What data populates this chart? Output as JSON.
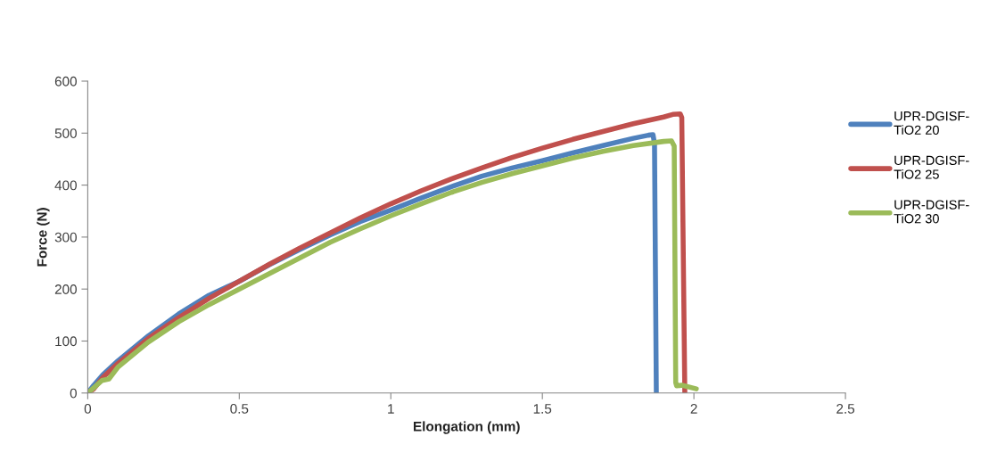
{
  "chart_data": {
    "type": "line",
    "xlabel": "Elongation (mm)",
    "ylabel": "Force (N)",
    "xlim": [
      0,
      2.5
    ],
    "ylim": [
      0,
      600
    ],
    "xticks": [
      0,
      0.5,
      1,
      1.5,
      2,
      2.5
    ],
    "yticks": [
      0,
      100,
      200,
      300,
      400,
      500,
      600
    ],
    "grid": false,
    "legend": "right",
    "marker": "none",
    "line_style": "solid",
    "series": [
      {
        "name": "UPR-DGISF-\nTiO2 20",
        "color": "#4f81bd",
        "x": [
          0,
          0.02,
          0.05,
          0.1,
          0.2,
          0.3,
          0.4,
          0.5,
          0.6,
          0.7,
          0.8,
          0.9,
          1.0,
          1.1,
          1.2,
          1.3,
          1.4,
          1.5,
          1.6,
          1.7,
          1.8,
          1.85,
          1.865,
          1.87,
          1.876
        ],
        "values": [
          0,
          15,
          35,
          62,
          110,
          152,
          188,
          215,
          247,
          276,
          304,
          330,
          352,
          375,
          397,
          417,
          433,
          447,
          462,
          476,
          490,
          496,
          497,
          480,
          0
        ]
      },
      {
        "name": "UPR-DGISF-\nTiO2 25",
        "color": "#c0504d",
        "x": [
          0,
          0.02,
          0.05,
          0.1,
          0.2,
          0.3,
          0.4,
          0.5,
          0.6,
          0.7,
          0.8,
          0.9,
          1.0,
          1.1,
          1.2,
          1.3,
          1.4,
          1.5,
          1.6,
          1.7,
          1.8,
          1.9,
          1.93,
          1.955,
          1.96,
          1.97
        ],
        "values": [
          0,
          8,
          30,
          57,
          105,
          145,
          182,
          215,
          248,
          279,
          308,
          337,
          364,
          389,
          412,
          433,
          453,
          471,
          488,
          503,
          518,
          531,
          536,
          537,
          530,
          0
        ]
      },
      {
        "name": "UPR-DGISF-\nTiO2 30",
        "color": "#9bbb59",
        "x": [
          0,
          0.02,
          0.047,
          0.07,
          0.1,
          0.2,
          0.3,
          0.4,
          0.5,
          0.6,
          0.7,
          0.8,
          0.9,
          1.0,
          1.1,
          1.2,
          1.3,
          1.4,
          1.5,
          1.6,
          1.7,
          1.8,
          1.9,
          1.926,
          1.935,
          1.94,
          1.943,
          1.96,
          2.008
        ],
        "values": [
          0,
          10,
          24,
          27,
          50,
          98,
          137,
          170,
          200,
          230,
          260,
          290,
          316,
          341,
          364,
          386,
          405,
          422,
          437,
          452,
          465,
          476,
          484,
          485,
          475,
          20,
          14,
          15,
          8
        ]
      }
    ]
  }
}
